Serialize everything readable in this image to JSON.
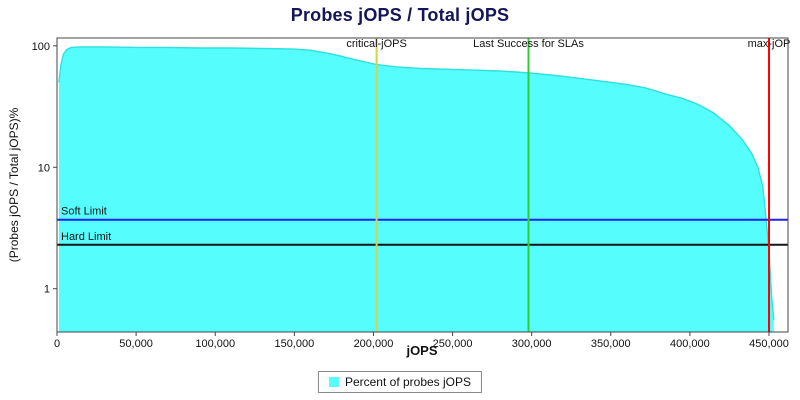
{
  "chart_data": {
    "type": "area",
    "title": "Probes jOPS / Total jOPS",
    "xlabel": "jOPS",
    "ylabel": "(Probes jOPS / Total jOPS)%",
    "y_scale": "log",
    "xlim": [
      0,
      462000
    ],
    "ylim": [
      0.44,
      116
    ],
    "x_ticks": [
      0,
      50000,
      100000,
      150000,
      200000,
      250000,
      300000,
      350000,
      400000,
      450000
    ],
    "y_ticks": [
      1,
      10,
      100
    ],
    "grid": false,
    "legend_position": "bottom-center",
    "series": [
      {
        "name": "Percent of probes jOPS",
        "fill_color": "#55fdfd",
        "stroke_color": "#2fe0e0",
        "points": [
          [
            1200,
            50
          ],
          [
            2500,
            70
          ],
          [
            4000,
            85
          ],
          [
            6000,
            93
          ],
          [
            9000,
            97
          ],
          [
            15000,
            98
          ],
          [
            30000,
            98
          ],
          [
            50000,
            97
          ],
          [
            70000,
            97
          ],
          [
            90000,
            96
          ],
          [
            110000,
            96
          ],
          [
            130000,
            95
          ],
          [
            150000,
            94
          ],
          [
            160000,
            92
          ],
          [
            175000,
            85
          ],
          [
            190000,
            76
          ],
          [
            202000,
            70
          ],
          [
            215000,
            67
          ],
          [
            230000,
            65
          ],
          [
            250000,
            64
          ],
          [
            265000,
            63
          ],
          [
            280000,
            62
          ],
          [
            298000,
            60
          ],
          [
            315000,
            57
          ],
          [
            330000,
            54
          ],
          [
            345000,
            51
          ],
          [
            360000,
            48
          ],
          [
            372000,
            45
          ],
          [
            385000,
            40
          ],
          [
            395000,
            37
          ],
          [
            405000,
            33
          ],
          [
            415000,
            28
          ],
          [
            425000,
            22
          ],
          [
            433000,
            17
          ],
          [
            439000,
            13
          ],
          [
            443000,
            10
          ],
          [
            446000,
            7
          ],
          [
            448000,
            4
          ],
          [
            450000,
            2
          ],
          [
            451500,
            0.9
          ],
          [
            453000,
            0.55
          ]
        ]
      }
    ],
    "vlines": [
      {
        "label": "critical-jOPS",
        "x": 202000,
        "color": "#d6d14a"
      },
      {
        "label": "Last Success for SLAs",
        "x": 298000,
        "color": "#33cc33"
      },
      {
        "label": "max-jOP",
        "x": 450000,
        "color": "#ff0000"
      }
    ],
    "hlines": [
      {
        "label": "Soft Limit",
        "y": 3.7,
        "color": "#2222ee"
      },
      {
        "label": "Hard Limit",
        "y": 2.3,
        "color": "#151515"
      }
    ],
    "legend": [
      {
        "label": "Percent of probes jOPS",
        "swatch_color": "#55fdfd"
      }
    ],
    "colors": {
      "title": "#15155a",
      "axis": "#444444",
      "tick_text": "#111111",
      "background": "#ffffff"
    }
  }
}
